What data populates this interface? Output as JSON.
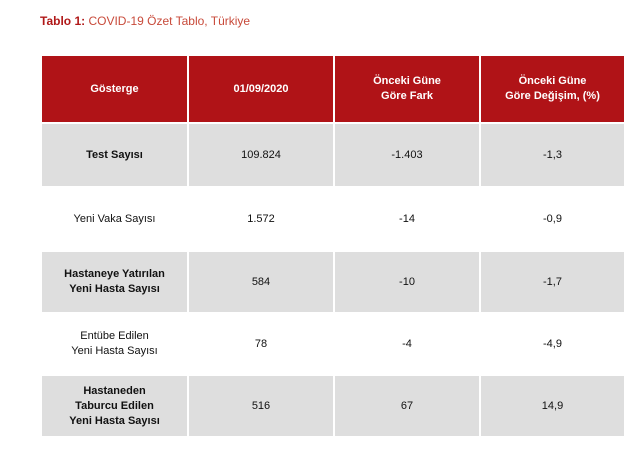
{
  "caption": {
    "label": "Tablo 1:",
    "text": "COVID-19 Özet Tablo, Türkiye"
  },
  "table": {
    "headers": {
      "indicator": "Gösterge",
      "date": "01/09/2020",
      "diff_line1": "Önceki Güne",
      "diff_line2": "Göre Fark",
      "change_line1": "Önceki Güne",
      "change_line2": "Göre Değişim, (%)"
    },
    "rows": [
      {
        "label_lines": [
          "Test Sayısı"
        ],
        "value": "109.824",
        "diff": "-1.403",
        "change": "-1,3"
      },
      {
        "label_lines": [
          "Yeni Vaka Sayısı"
        ],
        "value": "1.572",
        "diff": "-14",
        "change": "-0,9"
      },
      {
        "label_lines": [
          "Hastaneye Yatırılan",
          "Yeni Hasta Sayısı"
        ],
        "value": "584",
        "diff": "-10",
        "change": "-1,7"
      },
      {
        "label_lines": [
          "Entübe Edilen",
          "Yeni Hasta Sayısı"
        ],
        "value": "78",
        "diff": "-4",
        "change": "-4,9"
      },
      {
        "label_lines": [
          "Hastaneden",
          "Taburcu Edilen",
          "Yeni Hasta Sayısı"
        ],
        "value": "516",
        "diff": "67",
        "change": "14,9"
      }
    ]
  },
  "colors": {
    "header_bg": "#b01317",
    "shaded_row_bg": "#dedede",
    "caption_label": "#b01818"
  }
}
